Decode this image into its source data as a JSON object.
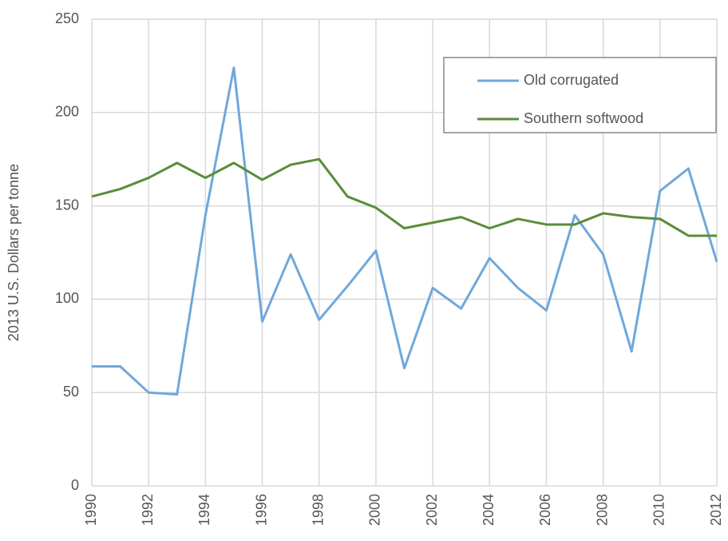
{
  "chart_data": {
    "type": "line",
    "y_label": "2013 U.S. Dollars per tonne",
    "x": [
      1990,
      1991,
      1992,
      1993,
      1994,
      1995,
      1996,
      1997,
      1998,
      1999,
      2000,
      2001,
      2002,
      2003,
      2004,
      2005,
      2006,
      2007,
      2008,
      2009,
      2010,
      2011,
      2012
    ],
    "series": [
      {
        "name": "Old corrugated",
        "color": "#6fa8dc",
        "values": [
          64,
          64,
          50,
          49,
          145,
          224,
          88,
          124,
          89,
          107,
          126,
          63,
          106,
          95,
          122,
          106,
          94,
          145,
          124,
          72,
          158,
          170,
          120
        ]
      },
      {
        "name": "Southern softwood",
        "color": "#5b8c3a",
        "values": [
          155,
          159,
          165,
          173,
          165,
          173,
          164,
          172,
          175,
          155,
          149,
          138,
          141,
          144,
          138,
          143,
          140,
          140,
          146,
          144,
          143,
          134,
          134
        ]
      }
    ],
    "xlim": [
      1990,
      2012
    ],
    "xticks": [
      1990,
      1992,
      1994,
      1996,
      1998,
      2000,
      2002,
      2004,
      2006,
      2008,
      2010,
      2012
    ],
    "ylim": [
      0,
      250
    ],
    "yticks": [
      0,
      50,
      100,
      150,
      200,
      250
    ],
    "grid": true,
    "legend_position": "upper right"
  }
}
